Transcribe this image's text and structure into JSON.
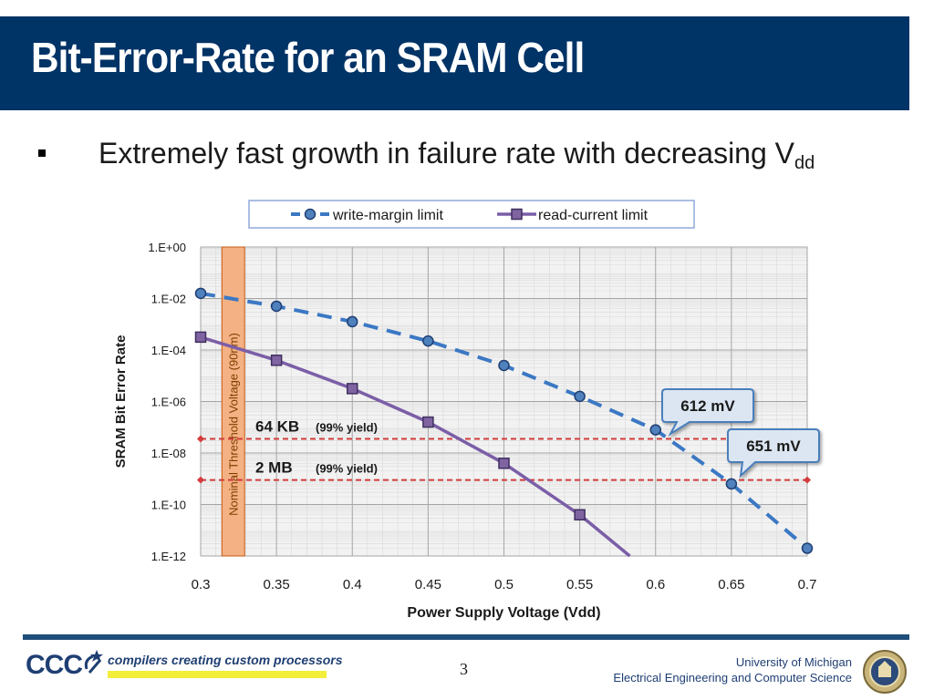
{
  "slide": {
    "title": "Bit-Error-Rate for an SRAM Cell",
    "bullet_text": "Extremely fast growth in failure rate with decreasing V",
    "bullet_sub": "dd",
    "page_number": "3",
    "footer_tagline": "compilers creating custom processors",
    "footer_logo": "CCC",
    "footer_univ_line1": "University of Michigan",
    "footer_univ_line2": "Electrical Engineering and Computer Science"
  },
  "colors": {
    "title_bg": "#003366",
    "write_series": "#3b78c4",
    "read_series": "#7b5ea7",
    "yield_line": "#d43c3c",
    "threshold_band": "#f4b183",
    "callout_bg": "#dce6f2",
    "callout_border": "#4a7ebb"
  },
  "chart_data": {
    "type": "line",
    "xlabel": "Power Supply Voltage (Vdd)",
    "ylabel": "SRAM Bit Error Rate",
    "xlim": [
      0.3,
      0.7
    ],
    "ylim_log10": [
      -12,
      0
    ],
    "x_ticks": [
      "0.3",
      "0.35",
      "0.4",
      "0.45",
      "0.5",
      "0.55",
      "0.6",
      "0.65",
      "0.7"
    ],
    "y_ticks": [
      "1.E+00",
      "1.E-02",
      "1.E-04",
      "1.E-06",
      "1.E-08",
      "1.E-10",
      "1.E-12"
    ],
    "grid": true,
    "legend_position": "top",
    "series": [
      {
        "name": "write-margin limit",
        "style": "dashed",
        "marker": "circle",
        "x": [
          0.3,
          0.35,
          0.4,
          0.45,
          0.5,
          0.55,
          0.6,
          0.65,
          0.7
        ],
        "log10_y": [
          -1.8,
          -2.3,
          -2.9,
          -3.65,
          -4.6,
          -5.8,
          -7.1,
          -9.2,
          -11.7
        ]
      },
      {
        "name": "read-current limit",
        "style": "solid",
        "marker": "square",
        "x": [
          0.3,
          0.35,
          0.4,
          0.45,
          0.5,
          0.55
        ],
        "log10_y": [
          -3.5,
          -4.4,
          -5.5,
          -6.8,
          -8.4,
          -10.4
        ],
        "curve_end": {
          "x": 0.583,
          "log10_y": -12
        }
      }
    ],
    "annotations": [
      {
        "kind": "band",
        "label": "Nominal Threshold Voltage (90nm)",
        "x_start": 0.314,
        "x_end": 0.329
      },
      {
        "kind": "hline",
        "label": "64 KB",
        "sublabel": "(99% yield)",
        "log10_y": -7.45
      },
      {
        "kind": "hline",
        "label": "2 MB",
        "sublabel": "(99% yield)",
        "log10_y": -9.05
      },
      {
        "kind": "callout",
        "label": "612 mV",
        "x": 0.612,
        "log10_y": -7.45
      },
      {
        "kind": "callout",
        "label": "651 mV",
        "x": 0.651,
        "log10_y": -9.05
      }
    ]
  }
}
